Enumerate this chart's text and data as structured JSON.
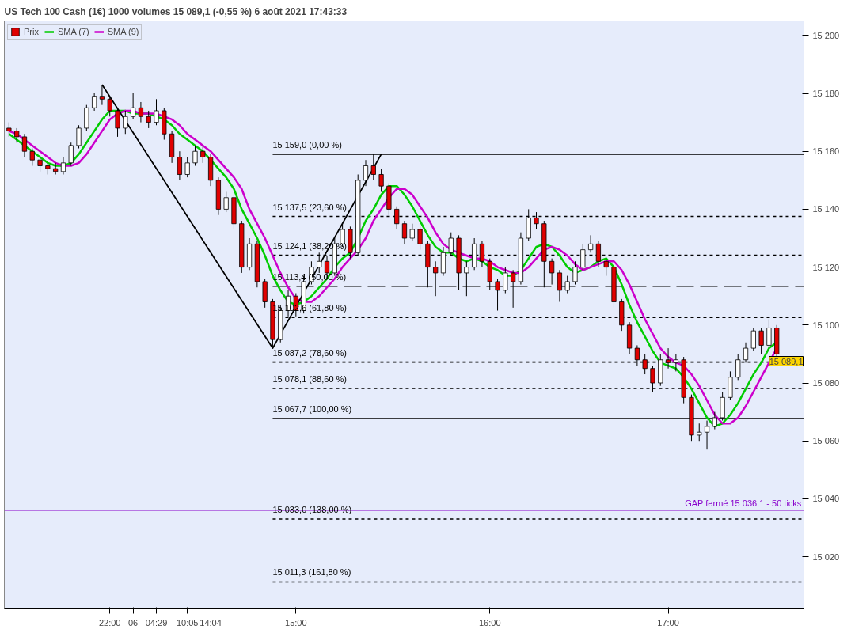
{
  "chart_data": {
    "type": "candlestick",
    "title": "US Tech 100 Cash (1€) 1000 volumes 15 089,1 (-0,55 %) 6 août 2021 17:43:33",
    "categories": [
      null,
      null,
      null,
      null,
      null,
      null,
      null,
      null,
      null,
      null,
      null,
      null,
      null,
      "22:00",
      null,
      null,
      "06",
      null,
      null,
      "04:29",
      null,
      null,
      null,
      "10:05",
      null,
      null,
      "14:04",
      null,
      null,
      null,
      null,
      null,
      null,
      null,
      null,
      null,
      null,
      "15:00",
      null,
      null,
      null,
      null,
      null,
      null,
      null,
      null,
      null,
      null,
      null,
      null,
      null,
      null,
      null,
      null,
      null,
      null,
      null,
      null,
      null,
      null,
      null,
      null,
      "16:00",
      null,
      null,
      null,
      null,
      null,
      null,
      null,
      null,
      null,
      null,
      null,
      null,
      null,
      null,
      null,
      null,
      null,
      null,
      null,
      null,
      null,
      null,
      "17:00",
      null,
      null,
      null,
      null,
      null,
      null,
      null,
      null,
      null,
      null,
      null,
      null,
      null,
      null
    ],
    "series": [
      {
        "name": "Prix",
        "ohlc": [
          [
            15168,
            15170,
            15165,
            15167
          ],
          [
            15167,
            15168,
            15163,
            15165
          ],
          [
            15165,
            15166,
            15158,
            15160
          ],
          [
            15160,
            15161,
            15155,
            15157
          ],
          [
            15157,
            15158,
            15153,
            15155
          ],
          [
            15155,
            15156,
            15152,
            15154
          ],
          [
            15154,
            15156,
            15152,
            15153
          ],
          [
            15153,
            15158,
            15152,
            15156
          ],
          [
            15156,
            15163,
            15155,
            15162
          ],
          [
            15162,
            15169,
            15161,
            15168
          ],
          [
            15168,
            15176,
            15167,
            15175
          ],
          [
            15175,
            15180,
            15174,
            15179
          ],
          [
            15179,
            15183,
            15176,
            15178
          ],
          [
            15178,
            15179,
            15172,
            15174
          ],
          [
            15174,
            15175,
            15165,
            15168
          ],
          [
            15168,
            15174,
            15166,
            15172
          ],
          [
            15172,
            15180,
            15171,
            15175
          ],
          [
            15175,
            15177,
            15170,
            15172
          ],
          [
            15172,
            15174,
            15168,
            15170
          ],
          [
            15170,
            15178,
            15169,
            15174
          ],
          [
            15174,
            15175,
            15164,
            15166
          ],
          [
            15166,
            15167,
            15156,
            15158
          ],
          [
            15158,
            15160,
            15150,
            15152
          ],
          [
            15152,
            15158,
            15151,
            15156
          ],
          [
            15156,
            15162,
            15155,
            15160
          ],
          [
            15160,
            15162,
            15156,
            15158
          ],
          [
            15158,
            15159,
            15148,
            15150
          ],
          [
            15150,
            15151,
            15138,
            15140
          ],
          [
            15140,
            15146,
            15139,
            15144
          ],
          [
            15144,
            15145,
            15133,
            15135
          ],
          [
            15135,
            15136,
            15118,
            15120
          ],
          [
            15120,
            15130,
            15119,
            15128
          ],
          [
            15128,
            15129,
            15113,
            15115
          ],
          [
            15115,
            15116,
            15106,
            15108
          ],
          [
            15108,
            15109,
            15092,
            15095
          ],
          [
            15095,
            15107,
            15094,
            15105
          ],
          [
            15105,
            15112,
            15103,
            15110
          ],
          [
            15110,
            15111,
            15103,
            15105
          ],
          [
            15105,
            15117,
            15104,
            15115
          ],
          [
            15115,
            15122,
            15114,
            15120
          ],
          [
            15120,
            15125,
            15118,
            15122
          ],
          [
            15122,
            15124,
            15116,
            15118
          ],
          [
            15118,
            15130,
            15117,
            15128
          ],
          [
            15128,
            15135,
            15127,
            15133
          ],
          [
            15133,
            15134,
            15123,
            15125
          ],
          [
            15125,
            15152,
            15124,
            15150
          ],
          [
            15150,
            15157,
            15148,
            15155
          ],
          [
            15155,
            15159,
            15150,
            15152
          ],
          [
            15152,
            15154,
            15146,
            15148
          ],
          [
            15148,
            15149,
            15138,
            15140
          ],
          [
            15140,
            15141,
            15133,
            15135
          ],
          [
            15135,
            15136,
            15128,
            15130
          ],
          [
            15130,
            15135,
            15129,
            15133
          ],
          [
            15133,
            15134,
            15126,
            15128
          ],
          [
            15128,
            15129,
            15113,
            15120
          ],
          [
            15120,
            15122,
            15110,
            15118
          ],
          [
            15118,
            15127,
            15117,
            15125
          ],
          [
            15125,
            15132,
            15124,
            15130
          ],
          [
            15130,
            15131,
            15112,
            15118
          ],
          [
            15118,
            15122,
            15110,
            15120
          ],
          [
            15120,
            15130,
            15119,
            15128
          ],
          [
            15128,
            15129,
            15120,
            15122
          ],
          [
            15122,
            15123,
            15112,
            15115
          ],
          [
            15115,
            15116,
            15105,
            15112
          ],
          [
            15112,
            15120,
            15111,
            15118
          ],
          [
            15118,
            15119,
            15106,
            15115
          ],
          [
            15115,
            15132,
            15114,
            15130
          ],
          [
            15130,
            15140,
            15129,
            15137
          ],
          [
            15137,
            15139,
            15133,
            15135
          ],
          [
            15135,
            15136,
            15113,
            15122
          ],
          [
            15122,
            15123,
            15114,
            15118
          ],
          [
            15118,
            15119,
            15108,
            15112
          ],
          [
            15112,
            15117,
            15111,
            15115
          ],
          [
            15115,
            15122,
            15114,
            15120
          ],
          [
            15120,
            15128,
            15119,
            15126
          ],
          [
            15126,
            15131,
            15125,
            15128
          ],
          [
            15128,
            15129,
            15120,
            15122
          ],
          [
            15122,
            15123,
            15117,
            15120
          ],
          [
            15120,
            15121,
            15106,
            15108
          ],
          [
            15108,
            15109,
            15098,
            15100
          ],
          [
            15100,
            15101,
            15090,
            15092
          ],
          [
            15092,
            15093,
            15086,
            15088
          ],
          [
            15088,
            15090,
            15083,
            15085
          ],
          [
            15085,
            15086,
            15077,
            15080
          ],
          [
            15080,
            15090,
            15079,
            15088
          ],
          [
            15088,
            15092,
            15085,
            15087
          ],
          [
            15087,
            15090,
            15084,
            15088
          ],
          [
            15088,
            15089,
            15073,
            15075
          ],
          [
            15075,
            15076,
            15060,
            15062
          ],
          [
            15062,
            15066,
            15060,
            15063
          ],
          [
            15063,
            15067,
            15057,
            15065
          ],
          [
            15065,
            15070,
            15064,
            15068
          ],
          [
            15068,
            15077,
            15067,
            15075
          ],
          [
            15075,
            15084,
            15074,
            15082
          ],
          [
            15082,
            15090,
            15081,
            15088
          ],
          [
            15088,
            15094,
            15087,
            15092
          ],
          [
            15092,
            15099,
            15091,
            15098
          ],
          [
            15098,
            15099,
            15090,
            15093
          ],
          [
            15093,
            15102,
            15092,
            15099
          ],
          [
            15099,
            15100,
            15086,
            15090
          ]
        ]
      },
      {
        "name": "SMA (7)",
        "type": "line",
        "color": "#00cc00",
        "values": [
          15166,
          15164,
          15162,
          15160,
          15158,
          15156,
          15155,
          15155,
          15156,
          15159,
          15163,
          15167,
          15171,
          15174,
          15174,
          15174,
          15173,
          15173,
          15173,
          15172,
          15171,
          15169,
          15166,
          15164,
          15162,
          15160,
          15157,
          15154,
          15151,
          15147,
          15140,
          15135,
          15130,
          15124,
          15117,
          15112,
          15108,
          15107,
          15108,
          15110,
          15113,
          15116,
          15120,
          15123,
          15125,
          15130,
          15136,
          15140,
          15145,
          15148,
          15148,
          15145,
          15141,
          15136,
          15131,
          15127,
          15125,
          15125,
          15123,
          15122,
          15123,
          15122,
          15120,
          15119,
          15117,
          15117,
          15119,
          15123,
          15127,
          15128,
          15127,
          15124,
          15120,
          15118,
          15119,
          15120,
          15122,
          15123,
          15120,
          15114,
          15107,
          15101,
          15096,
          15091,
          15087,
          15086,
          15085,
          15082,
          15078,
          15073,
          15068,
          15065,
          15066,
          15069,
          15073,
          15078,
          15083,
          15087,
          15092,
          15094
        ]
      },
      {
        "name": "SMA (9)",
        "type": "line",
        "color": "#cc00cc",
        "values": [
          15167,
          15166,
          15164,
          15162,
          15160,
          15158,
          15156,
          15155,
          15155,
          15156,
          15159,
          15163,
          15167,
          15171,
          15173,
          15174,
          15174,
          15173,
          15173,
          15173,
          15172,
          15171,
          15169,
          15166,
          15164,
          15162,
          15160,
          15157,
          15154,
          15151,
          15147,
          15140,
          15135,
          15130,
          15124,
          15118,
          15113,
          15109,
          15108,
          15108,
          15110,
          15113,
          15116,
          15120,
          15123,
          15126,
          15130,
          15136,
          15140,
          15144,
          15147,
          15147,
          15145,
          15141,
          15137,
          15132,
          15128,
          15126,
          15125,
          15124,
          15123,
          15123,
          15122,
          15120,
          15119,
          15118,
          15118,
          15120,
          15123,
          15126,
          15127,
          15126,
          15124,
          15121,
          15119,
          15120,
          15121,
          15122,
          15122,
          15119,
          15114,
          15108,
          15102,
          15097,
          15092,
          15089,
          15087,
          15086,
          15083,
          15079,
          15074,
          15069,
          15066,
          15066,
          15068,
          15072,
          15077,
          15082,
          15087,
          15092
        ]
      },
      {
        "type": "line",
        "color": "#000000",
        "values": [
          null,
          null,
          null,
          null,
          null,
          null,
          null,
          null,
          null,
          null,
          null,
          null,
          15183,
          null,
          null,
          null,
          null,
          null,
          null,
          null,
          null,
          null,
          null,
          null,
          null,
          null,
          null,
          null,
          null,
          null,
          null,
          null,
          null,
          null,
          15092,
          null,
          null,
          null,
          null,
          null,
          null,
          null,
          null,
          null,
          null,
          null,
          null,
          null,
          15159,
          null,
          null,
          null,
          null,
          null,
          null,
          null,
          null,
          null,
          null,
          null,
          null,
          null,
          null,
          null,
          null,
          null,
          null,
          null,
          null,
          null,
          null,
          null,
          null,
          null,
          null,
          null,
          null,
          null,
          null,
          null,
          null,
          null,
          null,
          null,
          null,
          null,
          null,
          null,
          null,
          null,
          null,
          null,
          null,
          null,
          null,
          null,
          null,
          null,
          null,
          null
        ]
      }
    ],
    "ylim": [
      15002,
      15205
    ],
    "yticks": [
      {
        "value": 15020,
        "label": "15 020"
      },
      {
        "value": 15040,
        "label": "15 040"
      },
      {
        "value": 15060,
        "label": "15 060"
      },
      {
        "value": 15080,
        "label": "15 080"
      },
      {
        "value": 15100,
        "label": "15 100"
      },
      {
        "value": 15120,
        "label": "15 120"
      },
      {
        "value": 15140,
        "label": "15 140"
      },
      {
        "value": 15160,
        "label": "15 160"
      },
      {
        "value": 15180,
        "label": "15 180"
      },
      {
        "value": 15200,
        "label": "15 200"
      }
    ],
    "ref_lines": [
      {
        "axis": "y",
        "value": 15159.0,
        "label": "15 159,0 (0,00 %)",
        "line_style": "solid"
      },
      {
        "axis": "y",
        "value": 15137.5,
        "label": "15 137,5 (23,60 %)",
        "line_style": "dotted"
      },
      {
        "axis": "y",
        "value": 15124.1,
        "label": "15 124,1 (38,20 %)",
        "line_style": "dotted"
      },
      {
        "axis": "y",
        "value": 15113.4,
        "label": "15 113,4 (50,00 %)",
        "line_style": "dashed"
      },
      {
        "axis": "y",
        "value": 15102.6,
        "label": "15 102,6 (61,80 %)",
        "line_style": "dotted"
      },
      {
        "axis": "y",
        "value": 15087.2,
        "label": "15 087,2 (78,60 %)",
        "line_style": "dotted"
      },
      {
        "axis": "y",
        "value": 15078.1,
        "label": "15 078,1 (88,60 %)",
        "line_style": "dotted"
      },
      {
        "axis": "y",
        "value": 15067.7,
        "label": "15 067,7 (100,00 %)",
        "line_style": "solid"
      },
      {
        "axis": "y",
        "value": 15033.0,
        "label": "15 033,0 (138,00 %)",
        "line_style": "dotted"
      },
      {
        "axis": "y",
        "value": 15011.3,
        "label": "15 011,3 (161,80 %)",
        "line_style": "dotted"
      },
      {
        "axis": "y",
        "value": 15036.1,
        "label": "GAP fermé 15 036,1 - 50 ticks",
        "line_style": "solid",
        "color": "#8800cc"
      }
    ],
    "annotations": [
      "15 089,1"
    ],
    "legend": "top left",
    "grid": false
  }
}
